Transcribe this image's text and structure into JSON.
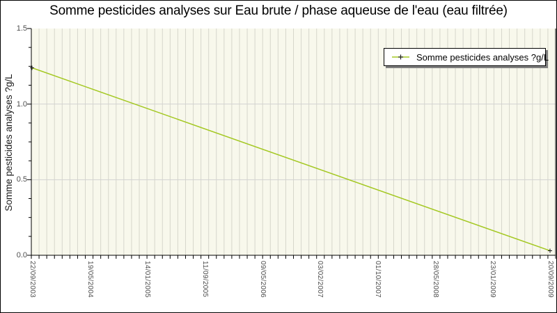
{
  "figure": {
    "title": "Somme pesticides analyses sur Eau brute / phase aqueuse de l'eau (eau filtrée)"
  },
  "legend": {
    "label": "Somme pesticides analyses ?g/L"
  },
  "y_axis": {
    "title": "Somme pesticides analyses ?g/L",
    "ticks": [
      "0.0",
      "0.5",
      "1.0",
      "1.5"
    ]
  },
  "x_axis": {
    "ticks": [
      "22/09/2003",
      "19/05/2004",
      "14/01/2005",
      "11/09/2005",
      "09/05/2006",
      "03/02/2007",
      "01/10/2007",
      "28/05/2008",
      "23/01/2009",
      "20/09/2009"
    ]
  },
  "chart_data": {
    "type": "line",
    "title": "Somme pesticides analyses sur Eau brute / phase aqueuse de l'eau (eau filtrée)",
    "xlabel": "",
    "ylabel": "Somme pesticides analyses ?g/L",
    "ylim": [
      0,
      1.5
    ],
    "y_major_ticks": [
      0,
      0.5,
      1.0,
      1.5
    ],
    "y_minor_step": 0.125,
    "x_tick_labels": [
      "22/09/2003",
      "19/05/2004",
      "14/01/2005",
      "11/09/2005",
      "09/05/2006",
      "03/02/2007",
      "01/10/2007",
      "28/05/2008",
      "23/01/2009",
      "20/09/2009"
    ],
    "series": [
      {
        "name": "Somme pesticides analyses ?g/L",
        "x": [
          "22/09/2003",
          "20/09/2009"
        ],
        "values": [
          1.24,
          0.03
        ],
        "color": "#a4c822",
        "marker": "plus"
      }
    ],
    "grid": {
      "vertical": true,
      "vertical_divisions": 68,
      "horizontal_at": [
        0.5,
        1.0
      ]
    },
    "legend_position": "top-right",
    "colors": {
      "plot_bg": "#f8f8ec",
      "grid_vertical": "#d6d6cb",
      "grid_horizontal": "#d2d2d2",
      "axis": "#000000",
      "line": "#a4c822",
      "marker": "#1a1a1a",
      "legend_shadow": "#808080"
    }
  }
}
